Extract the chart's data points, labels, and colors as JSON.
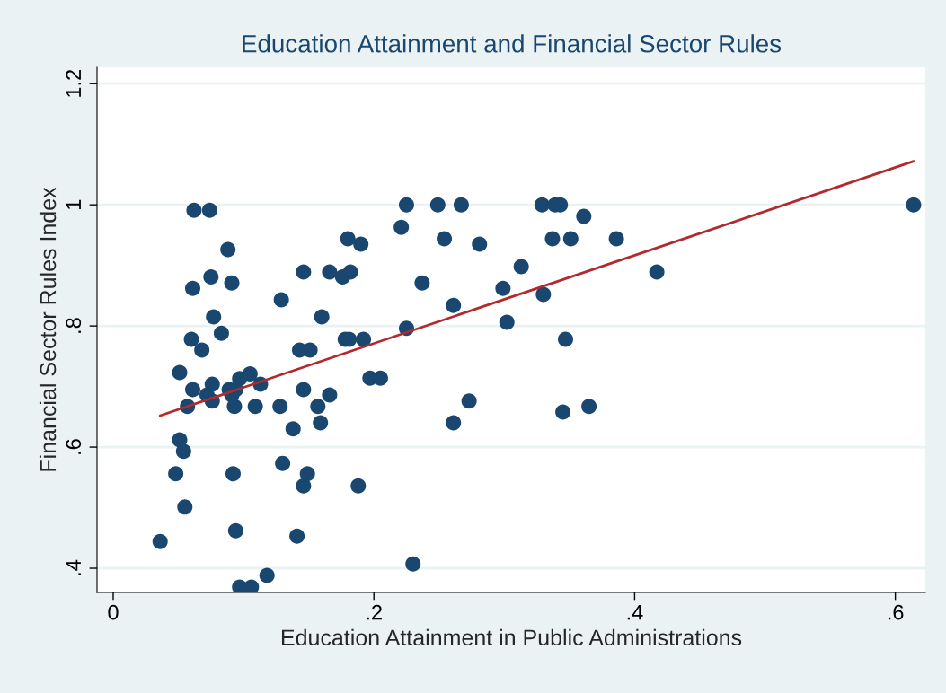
{
  "chart_data": {
    "type": "scatter",
    "title": "Education Attainment and Financial Sector Rules",
    "xlabel": "Education Attainment in Public Administrations",
    "ylabel": "Financial Sector Rules Index",
    "xlim": [
      -0.0124,
      0.623
    ],
    "ylim": [
      0.36,
      1.227
    ],
    "xticks": [
      0,
      {
        "value": 0.2,
        "label": ".2"
      },
      {
        "value": 0.4,
        "label": ".4"
      },
      {
        "value": 0.6,
        "label": ".6"
      }
    ],
    "yticks": [
      {
        "value": 0.4,
        "label": ".4"
      },
      {
        "value": 0.6,
        "label": ".6"
      },
      {
        "value": 0.8,
        "label": ".8"
      },
      1,
      {
        "value": 1.2,
        "label": "1.2"
      }
    ],
    "grid": "y",
    "series": [
      {
        "marker": "circle",
        "color": "#1a476f",
        "x": [
          0.036,
          0.048,
          0.051,
          0.051,
          0.054,
          0.055,
          0.057,
          0.06,
          0.061,
          0.061,
          0.062,
          0.068,
          0.072,
          0.074,
          0.075,
          0.076,
          0.076,
          0.077,
          0.083,
          0.088,
          0.089,
          0.091,
          0.091,
          0.092,
          0.093,
          0.094,
          0.094,
          0.097,
          0.097,
          0.105,
          0.106,
          0.109,
          0.113,
          0.118,
          0.128,
          0.129,
          0.13,
          0.138,
          0.141,
          0.143,
          0.146,
          0.146,
          0.146,
          0.149,
          0.151,
          0.157,
          0.159,
          0.16,
          0.166,
          0.166,
          0.176,
          0.178,
          0.18,
          0.181,
          0.182,
          0.188,
          0.19,
          0.192,
          0.197,
          0.205,
          0.221,
          0.225,
          0.225,
          0.23,
          0.237,
          0.249,
          0.254,
          0.261,
          0.261,
          0.267,
          0.273,
          0.281,
          0.299,
          0.302,
          0.313,
          0.329,
          0.33,
          0.337,
          0.339,
          0.343,
          0.345,
          0.347,
          0.351,
          0.361,
          0.365,
          0.386,
          0.417,
          0.614
        ],
        "values": [
          0.444,
          0.556,
          0.612,
          0.723,
          0.593,
          0.501,
          0.667,
          0.778,
          0.695,
          0.862,
          0.991,
          0.76,
          0.686,
          0.991,
          0.881,
          0.704,
          0.676,
          0.815,
          0.788,
          0.926,
          0.695,
          0.871,
          0.686,
          0.556,
          0.667,
          0.462,
          0.695,
          0.713,
          0.369,
          0.721,
          0.369,
          0.667,
          0.704,
          0.388,
          0.667,
          0.843,
          0.573,
          0.63,
          0.453,
          0.76,
          0.695,
          0.889,
          0.536,
          0.556,
          0.76,
          0.667,
          0.64,
          0.815,
          0.889,
          0.686,
          0.881,
          0.778,
          0.944,
          0.778,
          0.889,
          0.536,
          0.935,
          0.778,
          0.714,
          0.714,
          0.963,
          1.0,
          0.796,
          0.407,
          0.871,
          1.0,
          0.944,
          0.834,
          0.64,
          1.0,
          0.676,
          0.935,
          0.862,
          0.806,
          0.898,
          1.0,
          0.852,
          0.944,
          1.0,
          1.0,
          0.658,
          0.778,
          0.944,
          0.981,
          0.667,
          0.944,
          0.889,
          1.0
        ]
      },
      {
        "type": "line",
        "color": "#b22a2e",
        "x": [
          0.036,
          0.614
        ],
        "values": [
          0.652,
          1.072
        ]
      }
    ]
  }
}
